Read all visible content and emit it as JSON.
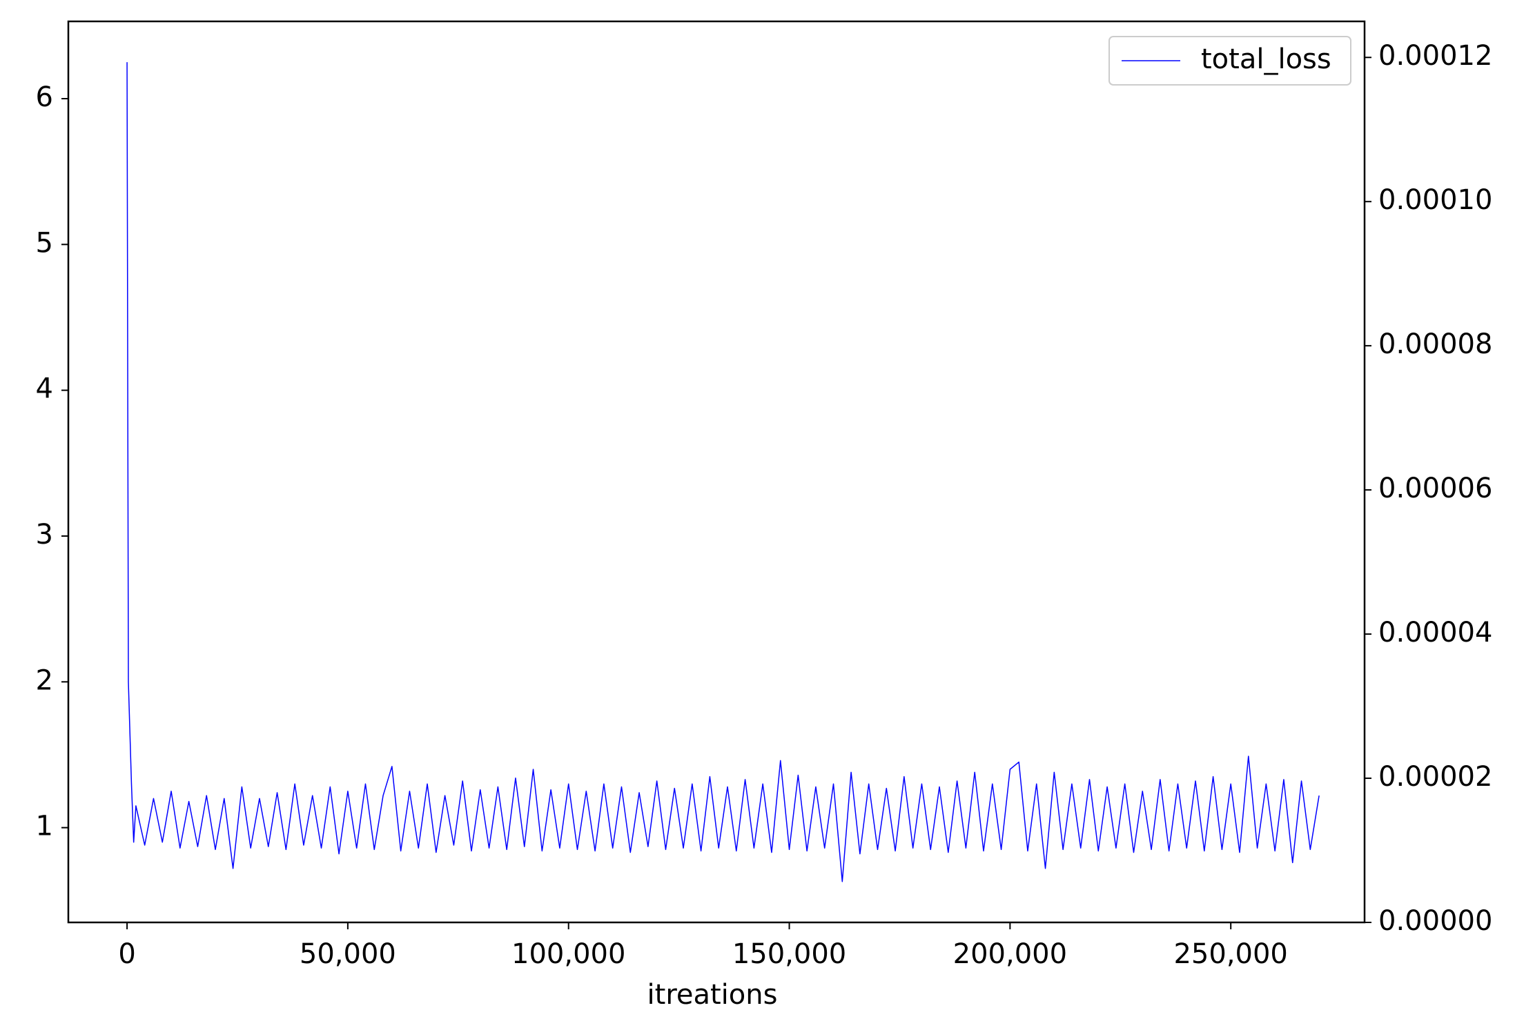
{
  "chart_data": {
    "type": "line",
    "xlabel": "itreations",
    "x": [
      0,
      300,
      600,
      1000,
      1500,
      2000,
      4000,
      6000,
      8000,
      10000,
      12000,
      14000,
      16000,
      18000,
      20000,
      22000,
      24000,
      26000,
      28000,
      30000,
      32000,
      34000,
      36000,
      38000,
      40000,
      42000,
      44000,
      46000,
      48000,
      50000,
      52000,
      54000,
      56000,
      58000,
      60000,
      62000,
      64000,
      66000,
      68000,
      70000,
      72000,
      74000,
      76000,
      78000,
      80000,
      82000,
      84000,
      86000,
      88000,
      90000,
      92000,
      94000,
      96000,
      98000,
      100000,
      102000,
      104000,
      106000,
      108000,
      110000,
      112000,
      114000,
      116000,
      118000,
      120000,
      122000,
      124000,
      126000,
      128000,
      130000,
      132000,
      134000,
      136000,
      138000,
      140000,
      142000,
      144000,
      146000,
      148000,
      150000,
      152000,
      154000,
      156000,
      158000,
      160000,
      162000,
      164000,
      166000,
      168000,
      170000,
      172000,
      174000,
      176000,
      178000,
      180000,
      182000,
      184000,
      186000,
      188000,
      190000,
      192000,
      194000,
      196000,
      198000,
      200000,
      202000,
      204000,
      206000,
      208000,
      210000,
      212000,
      214000,
      216000,
      218000,
      220000,
      222000,
      224000,
      226000,
      228000,
      230000,
      232000,
      234000,
      236000,
      238000,
      240000,
      242000,
      244000,
      246000,
      248000,
      250000,
      252000,
      254000,
      256000,
      258000,
      260000,
      262000,
      264000,
      266000,
      268000,
      270000
    ],
    "series": [
      {
        "name": "total_loss",
        "color": "#0000ff",
        "values": [
          6.25,
          2.0,
          1.7,
          1.3,
          0.9,
          1.15,
          0.88,
          1.2,
          0.9,
          1.25,
          0.86,
          1.18,
          0.87,
          1.22,
          0.85,
          1.2,
          0.72,
          1.28,
          0.86,
          1.2,
          0.87,
          1.24,
          0.85,
          1.3,
          0.88,
          1.22,
          0.86,
          1.28,
          0.82,
          1.25,
          0.86,
          1.3,
          0.85,
          1.22,
          1.42,
          0.84,
          1.25,
          0.86,
          1.3,
          0.83,
          1.22,
          0.88,
          1.32,
          0.84,
          1.26,
          0.86,
          1.28,
          0.85,
          1.34,
          0.87,
          1.4,
          0.84,
          1.26,
          0.86,
          1.3,
          0.85,
          1.25,
          0.84,
          1.3,
          0.86,
          1.28,
          0.83,
          1.24,
          0.87,
          1.32,
          0.85,
          1.27,
          0.86,
          1.3,
          0.84,
          1.35,
          0.86,
          1.28,
          0.84,
          1.33,
          0.86,
          1.3,
          0.83,
          1.46,
          0.85,
          1.36,
          0.84,
          1.28,
          0.86,
          1.3,
          0.63,
          1.38,
          0.82,
          1.3,
          0.85,
          1.27,
          0.84,
          1.35,
          0.86,
          1.3,
          0.85,
          1.28,
          0.83,
          1.32,
          0.86,
          1.38,
          0.84,
          1.3,
          0.85,
          1.4,
          1.45,
          0.84,
          1.3,
          0.72,
          1.38,
          0.85,
          1.3,
          0.86,
          1.33,
          0.84,
          1.28,
          0.86,
          1.3,
          0.83,
          1.25,
          0.85,
          1.33,
          0.84,
          1.3,
          0.86,
          1.32,
          0.84,
          1.35,
          0.85,
          1.3,
          0.83,
          1.49,
          0.86,
          1.3,
          0.84,
          1.33,
          0.76,
          1.32,
          0.85,
          1.22
        ]
      }
    ],
    "xlim": [
      -13300,
      280300
    ],
    "xticks": [
      0,
      {
        "value": 50000,
        "label": "50,000"
      },
      {
        "value": 100000,
        "label": "100,000"
      },
      {
        "value": 150000,
        "label": "150,000"
      },
      {
        "value": 200000,
        "label": "200,000"
      },
      {
        "value": 250000,
        "label": "250,000"
      }
    ],
    "ylim": [
      0.35,
      6.53
    ],
    "yticks": [
      1,
      2,
      3,
      4,
      5,
      6
    ],
    "y2lim": [
      0,
      0.000125
    ],
    "y2ticks": [
      {
        "value": 0,
        "label": "0.00000"
      },
      {
        "value": 2e-05,
        "label": "0.00002"
      },
      {
        "value": 4e-05,
        "label": "0.00004"
      },
      {
        "value": 6e-05,
        "label": "0.00006"
      },
      {
        "value": 8e-05,
        "label": "0.00008"
      },
      {
        "value": 0.0001,
        "label": "0.00010"
      },
      {
        "value": 0.00012,
        "label": "0.00012"
      }
    ],
    "legend": "upper right"
  }
}
